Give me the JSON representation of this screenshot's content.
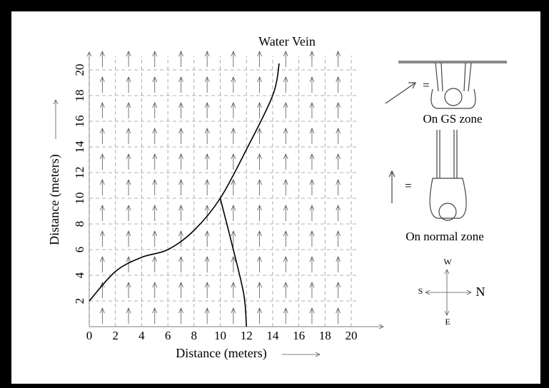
{
  "chart_data": {
    "type": "line",
    "xlabel": "Distance (meters)",
    "ylabel": "Distance (meters)",
    "xlim": [
      0,
      20
    ],
    "ylim": [
      0,
      20
    ],
    "xticks": [
      0,
      2,
      4,
      6,
      8,
      10,
      12,
      14,
      16,
      18,
      20
    ],
    "yticks": [
      2,
      4,
      6,
      8,
      10,
      12,
      14,
      16,
      18,
      20
    ],
    "grid": true,
    "series": [
      {
        "name": "Water Vein",
        "color": "#000000",
        "x": [
          0,
          2,
          4,
          6,
          8,
          10,
          12,
          14,
          14.5,
          null,
          10,
          11,
          11.8,
          12
        ],
        "values": [
          2,
          4.3,
          5.4,
          6,
          7.5,
          10,
          13.8,
          18,
          20.5,
          null,
          10,
          6,
          2.5,
          0
        ]
      }
    ],
    "annotations": {
      "gs_zone": "On GS zone",
      "normal_zone": "On normal zone",
      "equals": "="
    },
    "compass": {
      "w": "W",
      "s": "S",
      "n": "N",
      "e": "E"
    }
  }
}
